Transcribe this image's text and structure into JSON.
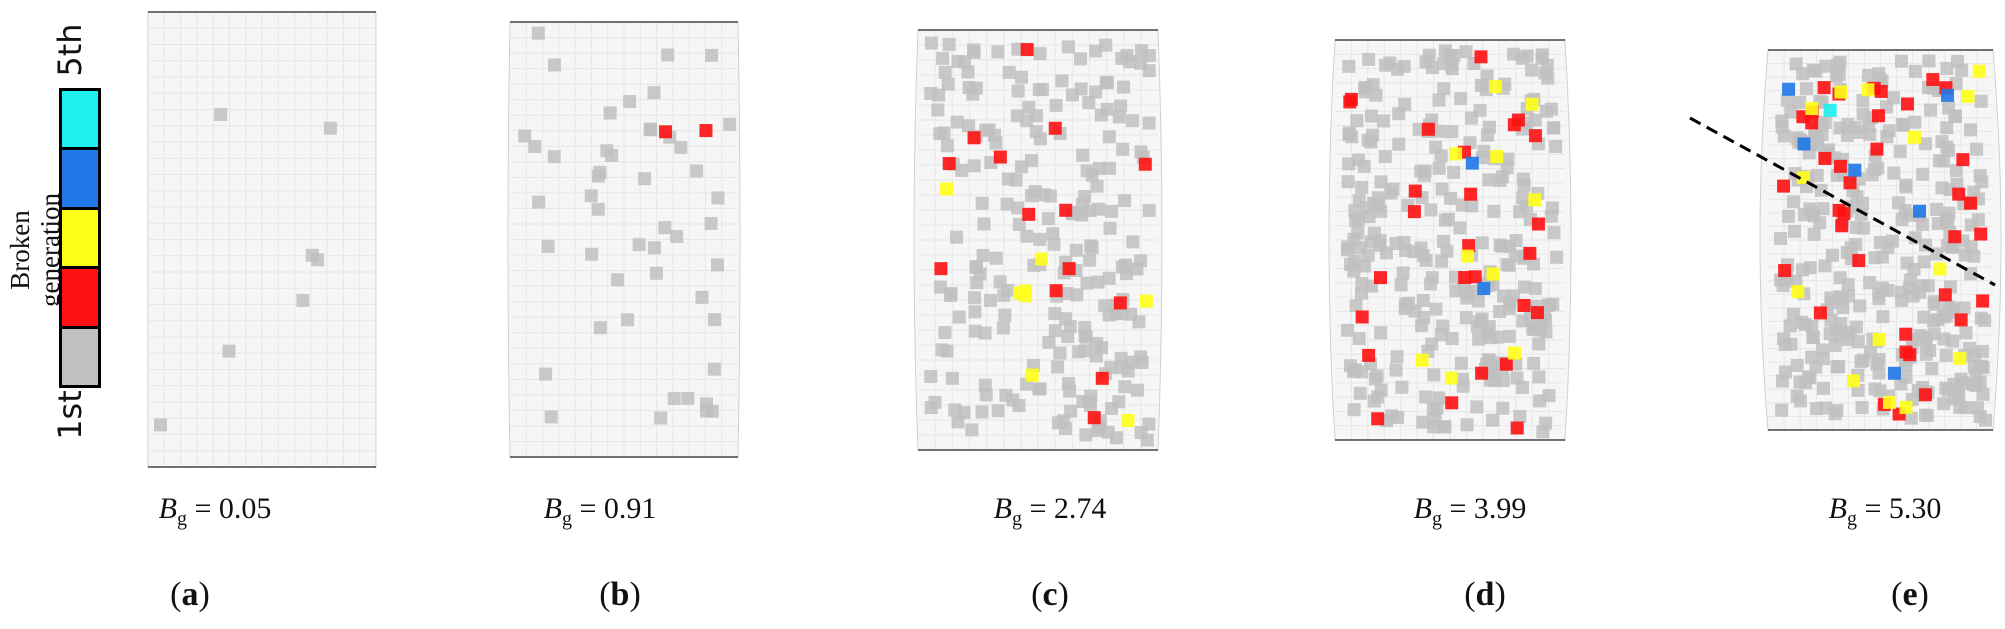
{
  "legend": {
    "axis_label": "Broken generation",
    "top_label": "5th",
    "bottom_label": "1st",
    "swatches": [
      {
        "name": "5th",
        "color": "#1df0ee"
      },
      {
        "name": "4th",
        "color": "#1f77e8"
      },
      {
        "name": "3rd",
        "color": "#ffff1a"
      },
      {
        "name": "2nd",
        "color": "#ff1111"
      },
      {
        "name": "1st",
        "color": "#c0c0c0"
      }
    ]
  },
  "bg_symbol": "B",
  "bg_subscript": "g",
  "panels": [
    {
      "letter": "a",
      "bg_value": "0.05"
    },
    {
      "letter": "b",
      "bg_value": "0.91"
    },
    {
      "letter": "c",
      "bg_value": "2.74"
    },
    {
      "letter": "d",
      "bg_value": "3.99"
    },
    {
      "letter": "e",
      "bg_value": "5.30"
    }
  ],
  "fracture_line": {
    "style": "dashed",
    "color": "#000000",
    "panel": "e"
  }
}
